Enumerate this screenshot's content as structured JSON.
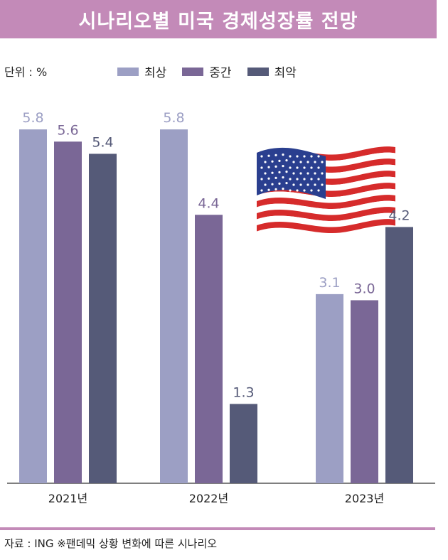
{
  "title": "시나리오별 미국 경제성장률 전망",
  "unit_label": "단위 : %",
  "legend": [
    {
      "label": "최상",
      "color": "#9c9fc4"
    },
    {
      "label": "중간",
      "color": "#7a6796"
    },
    {
      "label": "최악",
      "color": "#555a78"
    }
  ],
  "source": "자료 : ING  ※팬데믹 상황 변화에 따른 시나리오",
  "chart_data": {
    "type": "bar",
    "title": "시나리오별 미국 경제성장률 전망",
    "categories": [
      "2021년",
      "2022년",
      "2023년"
    ],
    "series": [
      {
        "name": "최상",
        "values": [
          5.8,
          5.8,
          3.1
        ],
        "color": "#9c9fc4"
      },
      {
        "name": "중간",
        "values": [
          5.6,
          4.4,
          3.0
        ],
        "color": "#7a6796"
      },
      {
        "name": "최악",
        "values": [
          5.4,
          1.3,
          4.2
        ],
        "color": "#555a78"
      }
    ],
    "value_label_colors": [
      "#9c9fc4",
      "#7a6796",
      "#555a78"
    ],
    "ylabel": "",
    "xlabel": "",
    "ylim": [
      0,
      6.5
    ],
    "grid": false,
    "legend_position": "top"
  },
  "flag_icon": "us-flag-icon"
}
